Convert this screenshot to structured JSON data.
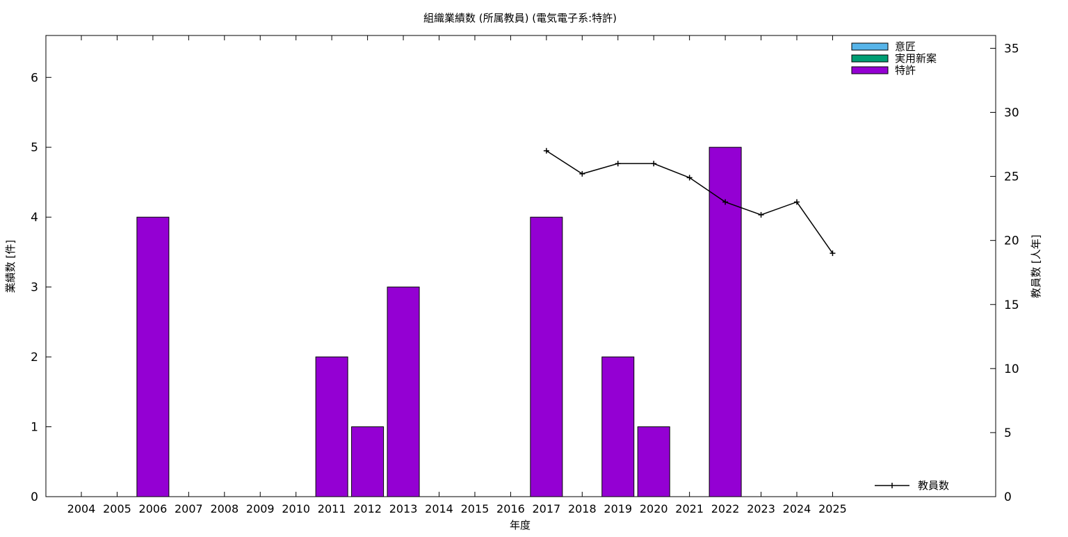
{
  "chart_data": {
    "type": "bar",
    "title": "組織業績数 (所属教員) (電気電子系:特許)",
    "xlabel": "年度",
    "ylabel": "業績数 [件]",
    "y2label": "教員数 [人年]",
    "categories": [
      "2004",
      "2005",
      "2006",
      "2007",
      "2008",
      "2009",
      "2010",
      "2011",
      "2012",
      "2013",
      "2014",
      "2015",
      "2016",
      "2017",
      "2018",
      "2019",
      "2020",
      "2021",
      "2022",
      "2023",
      "2024",
      "2025"
    ],
    "ylim": [
      0,
      6.6
    ],
    "y2lim": [
      0,
      36
    ],
    "yticks": [
      0,
      1,
      2,
      3,
      4,
      5,
      6
    ],
    "y2ticks": [
      0,
      5,
      10,
      15,
      20,
      25,
      30,
      35
    ],
    "legend_position": "top-right",
    "series": [
      {
        "name": "意匠",
        "color": "#56b4e9",
        "values": [
          0,
          0,
          0,
          0,
          0,
          0,
          0,
          0,
          0,
          0,
          0,
          0,
          0,
          0,
          0,
          0,
          0,
          0,
          0,
          0,
          0,
          0
        ]
      },
      {
        "name": "実用新案",
        "color": "#009e73",
        "values": [
          0,
          0,
          0,
          0,
          0,
          0,
          0,
          0,
          0,
          0,
          0,
          0,
          0,
          0,
          0,
          0,
          0,
          0,
          0,
          0,
          0,
          0
        ]
      },
      {
        "name": "特許",
        "color": "#9400d3",
        "values": [
          0,
          0,
          4,
          0,
          0,
          0,
          0,
          2,
          1,
          3,
          0,
          0,
          0,
          4,
          0,
          2,
          1,
          0,
          5,
          0,
          0,
          0
        ]
      }
    ],
    "line_series": {
      "name": "教員数",
      "axis": "y2",
      "color": "#000000",
      "x": [
        "2017",
        "2018",
        "2019",
        "2020",
        "2021",
        "2022",
        "2023",
        "2024",
        "2025"
      ],
      "values": [
        27,
        25.2,
        26,
        26,
        24.9,
        23,
        22,
        23,
        19
      ]
    }
  }
}
